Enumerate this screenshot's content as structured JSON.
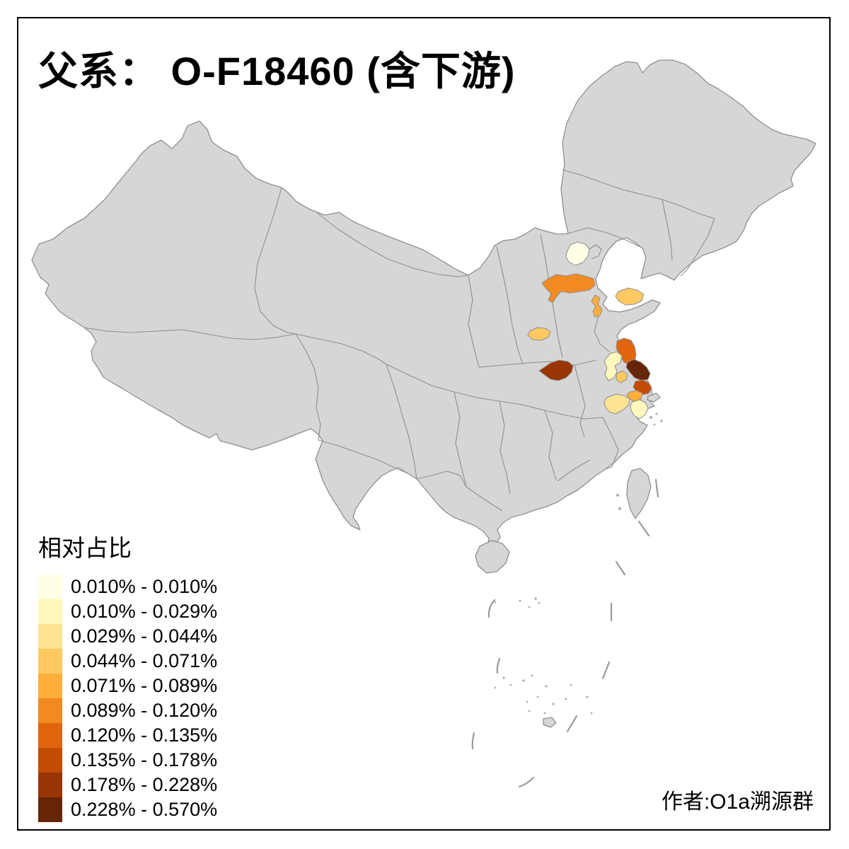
{
  "title": "父系： O-F18460 (含下游)",
  "attribution": "作者:O1a溯源群",
  "legend": {
    "title": "相对占比",
    "classes": [
      {
        "label": "0.010% - 0.010%",
        "color": "#FFFFE5"
      },
      {
        "label": "0.010% - 0.029%",
        "color": "#FFF7BC"
      },
      {
        "label": "0.029% - 0.044%",
        "color": "#FEE391"
      },
      {
        "label": "0.044% - 0.071%",
        "color": "#FEC961"
      },
      {
        "label": "0.071% - 0.089%",
        "color": "#FDAE3B"
      },
      {
        "label": "0.089% - 0.120%",
        "color": "#F28A22"
      },
      {
        "label": "0.120% - 0.135%",
        "color": "#E1650E"
      },
      {
        "label": "0.135% - 0.178%",
        "color": "#C44B02"
      },
      {
        "label": "0.178% - 0.228%",
        "color": "#993404"
      },
      {
        "label": "0.228% - 0.570%",
        "color": "#662506"
      }
    ]
  },
  "chart_data": {
    "type": "heatmap",
    "subtype": "choropleth-map",
    "title": "父系： O-F18460 (含下游)",
    "legend_title": "相对占比",
    "legend_position": "bottom-left",
    "base_map": "China, province and prefecture boundaries",
    "no_data_color": "#D6D6D6",
    "background_color": "#FFFFFF",
    "bins": [
      "0.010% - 0.010%",
      "0.010% - 0.029%",
      "0.029% - 0.044%",
      "0.044% - 0.071%",
      "0.071% - 0.089%",
      "0.089% - 0.120%",
      "0.120% - 0.135%",
      "0.135% - 0.178%",
      "0.178% - 0.228%",
      "0.228% - 0.570%"
    ],
    "colors": [
      "#FFFFE5",
      "#FFF7BC",
      "#FEE391",
      "#FEC961",
      "#FDAE3B",
      "#F28A22",
      "#E1650E",
      "#C44B02",
      "#993404",
      "#662506"
    ],
    "regions": [
      {
        "approx_location": "beijing-area",
        "bin": "0.010% - 0.010%",
        "class_index": 0
      },
      {
        "approx_location": "central-hebei",
        "bin": "0.089% - 0.120%",
        "class_index": 5
      },
      {
        "approx_location": "south-hebei",
        "bin": "0.071% - 0.089%",
        "class_index": 4
      },
      {
        "approx_location": "central-shandong",
        "bin": "0.044% - 0.071%",
        "class_index": 3
      },
      {
        "approx_location": "southeast-shanxi",
        "bin": "0.044% - 0.071%",
        "class_index": 3
      },
      {
        "approx_location": "north-henan",
        "bin": "0.178% - 0.228%",
        "class_index": 8
      },
      {
        "approx_location": "north-jiangsu-coast",
        "bin": "0.120% - 0.135%",
        "class_index": 6
      },
      {
        "approx_location": "northwest-jiangsu",
        "bin": "0.010% - 0.029%",
        "class_index": 1
      },
      {
        "approx_location": "central-jiangsu",
        "bin": "0.044% - 0.071%",
        "class_index": 3
      },
      {
        "approx_location": "east-jiangsu-coast",
        "bin": "0.228% - 0.570%",
        "class_index": 9
      },
      {
        "approx_location": "southeast-jiangsu",
        "bin": "0.135% - 0.178%",
        "class_index": 7
      },
      {
        "approx_location": "south-jiangsu",
        "bin": "0.071% - 0.089%",
        "class_index": 4
      },
      {
        "approx_location": "south-yangtze-delta",
        "bin": "0.029% - 0.044%",
        "class_index": 2
      },
      {
        "approx_location": "shanghai-area",
        "bin": "0.010% - 0.029%",
        "class_index": 1
      }
    ]
  },
  "map_style": {
    "land_color": "#D6D6D6",
    "boundary_color": "#8F8F8F",
    "sea_color": "#FFFFFF",
    "frame_color": "#000000"
  }
}
